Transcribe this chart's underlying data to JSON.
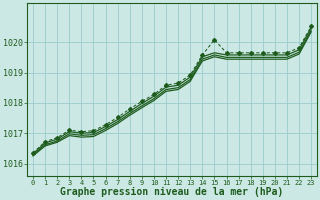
{
  "bg_color": "#cce8e4",
  "grid_color": "#99cccc",
  "line_color": "#1e5c1e",
  "xlabel": "Graphe pression niveau de la mer (hPa)",
  "xlim": [
    -0.5,
    23.5
  ],
  "ylim": [
    1015.6,
    1021.3
  ],
  "yticks": [
    1016,
    1017,
    1018,
    1019,
    1020
  ],
  "xticks": [
    0,
    1,
    2,
    3,
    4,
    5,
    6,
    7,
    8,
    9,
    10,
    11,
    12,
    13,
    14,
    15,
    16,
    17,
    18,
    19,
    20,
    21,
    22,
    23
  ],
  "hours": [
    0,
    1,
    2,
    3,
    4,
    5,
    6,
    7,
    8,
    9,
    10,
    11,
    12,
    13,
    14,
    15,
    16,
    17,
    18,
    19,
    20,
    21,
    22,
    23
  ],
  "dotted_line": [
    1016.35,
    1016.72,
    1016.85,
    1017.1,
    1017.05,
    1017.08,
    1017.28,
    1017.52,
    1017.8,
    1018.05,
    1018.28,
    1018.58,
    1018.65,
    1018.92,
    1019.58,
    1020.08,
    1019.65,
    1019.65,
    1019.65,
    1019.65,
    1019.65,
    1019.65,
    1019.82,
    1020.52
  ],
  "upper_solid": [
    1016.32,
    1016.68,
    1016.8,
    1017.05,
    1017.0,
    1017.02,
    1017.22,
    1017.45,
    1017.72,
    1017.98,
    1018.22,
    1018.52,
    1018.58,
    1018.85,
    1019.52,
    1019.65,
    1019.58,
    1019.58,
    1019.58,
    1019.58,
    1019.58,
    1019.58,
    1019.75,
    1020.48
  ],
  "mid_solid": [
    1016.28,
    1016.62,
    1016.74,
    1016.98,
    1016.93,
    1016.95,
    1017.15,
    1017.38,
    1017.65,
    1017.9,
    1018.14,
    1018.44,
    1018.5,
    1018.77,
    1019.44,
    1019.58,
    1019.5,
    1019.5,
    1019.5,
    1019.5,
    1019.5,
    1019.5,
    1019.67,
    1020.4
  ],
  "lower_solid": [
    1016.25,
    1016.58,
    1016.7,
    1016.92,
    1016.87,
    1016.89,
    1017.09,
    1017.32,
    1017.59,
    1017.84,
    1018.08,
    1018.38,
    1018.44,
    1018.71,
    1019.38,
    1019.52,
    1019.44,
    1019.44,
    1019.44,
    1019.44,
    1019.44,
    1019.44,
    1019.61,
    1020.34
  ]
}
